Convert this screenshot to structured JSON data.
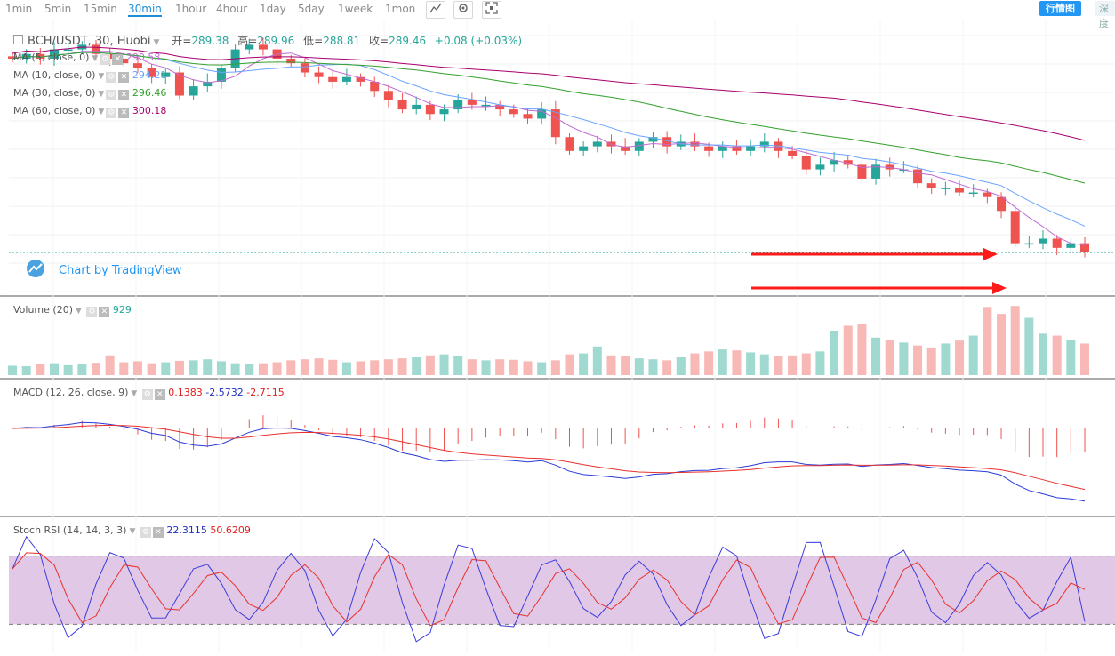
{
  "toolbar": {
    "timeframes": [
      "1min",
      "5min",
      "15min",
      "30min",
      "1hour",
      "4hour",
      "1day",
      "5day",
      "1week",
      "1mon"
    ],
    "active": "30min",
    "icons": [
      "chart-style-icon",
      "settings-icon",
      "fullscreen-icon"
    ],
    "market_button": "行情图",
    "depth_button": "深度"
  },
  "main_legend": {
    "symbol": "BCH/USDT, 30, Huobi",
    "open_label": "开",
    "open": "289.38",
    "high_label": "高",
    "high": "289.96",
    "low_label": "低",
    "low": "288.81",
    "close_label": "收",
    "close": "289.46",
    "change": "+0.08 (+0.03%)"
  },
  "ma_legends": [
    {
      "label": "MA (5, close, 0)",
      "value": "290.58",
      "color": "#c06ad3"
    },
    {
      "label": "MA (10, close, 0)",
      "value": "294.21",
      "color": "#6aa3ff"
    },
    {
      "label": "MA (30, close, 0)",
      "value": "296.46",
      "color": "#33a02c"
    },
    {
      "label": "MA (60, close, 0)",
      "value": "300.18",
      "color": "#a8006e"
    }
  ],
  "brand": "Chart by TradingView",
  "volume_legend": {
    "label": "Volume (20)",
    "value": "929"
  },
  "macd_legend": {
    "label": "MACD (12, 26, close, 9)",
    "v1": "0.1383",
    "v2": "-2.5732",
    "v3": "-2.7115"
  },
  "stoch_legend": {
    "label": "Stoch RSI (14, 14, 3, 3)",
    "k": "22.3115",
    "d": "50.6209"
  },
  "colors": {
    "up": "#26a69a",
    "down": "#ef5350",
    "accent": "#2196f3",
    "arrow": "#ff1a1a",
    "stoch_band": "#e1c8e6"
  },
  "chart_data": {
    "type": "candlestick",
    "title": "BCH/USDT, 30, Huobi",
    "candles_approx_close": [
      331,
      332,
      331,
      333,
      333,
      334,
      332,
      331,
      330,
      329,
      327,
      328,
      323,
      325,
      326,
      329,
      333,
      334,
      333,
      331,
      330,
      328,
      327,
      326,
      327,
      326,
      324,
      322,
      320,
      321,
      319,
      320,
      322,
      321,
      321,
      320,
      319,
      318,
      320,
      314,
      311,
      312,
      313,
      312,
      311,
      313,
      314,
      312,
      313,
      312,
      311,
      312,
      311,
      312,
      313,
      311,
      310,
      307,
      308,
      309,
      308,
      305,
      308,
      307,
      307,
      304,
      303,
      303,
      302,
      302,
      301,
      298,
      291,
      291,
      292,
      290,
      291,
      289
    ],
    "volume_approx": [
      95,
      90,
      110,
      120,
      100,
      115,
      125,
      200,
      130,
      140,
      120,
      130,
      145,
      150,
      160,
      140,
      120,
      110,
      120,
      130,
      150,
      160,
      170,
      155,
      130,
      140,
      150,
      160,
      170,
      180,
      200,
      210,
      195,
      160,
      150,
      160,
      155,
      140,
      130,
      150,
      210,
      220,
      290,
      200,
      190,
      170,
      160,
      150,
      180,
      220,
      240,
      260,
      250,
      230,
      210,
      190,
      200,
      220,
      240,
      450,
      500,
      520,
      380,
      360,
      330,
      300,
      280,
      320,
      350,
      400,
      690,
      620,
      700,
      580,
      420,
      400,
      360,
      320
    ],
    "macd": {
      "macd": 0.1383,
      "signal": -2.5732,
      "histogram": -2.7115
    },
    "stoch_rsi": {
      "k": 22.3115,
      "d": 50.6209,
      "upper_band": 80,
      "lower_band": 20
    }
  }
}
